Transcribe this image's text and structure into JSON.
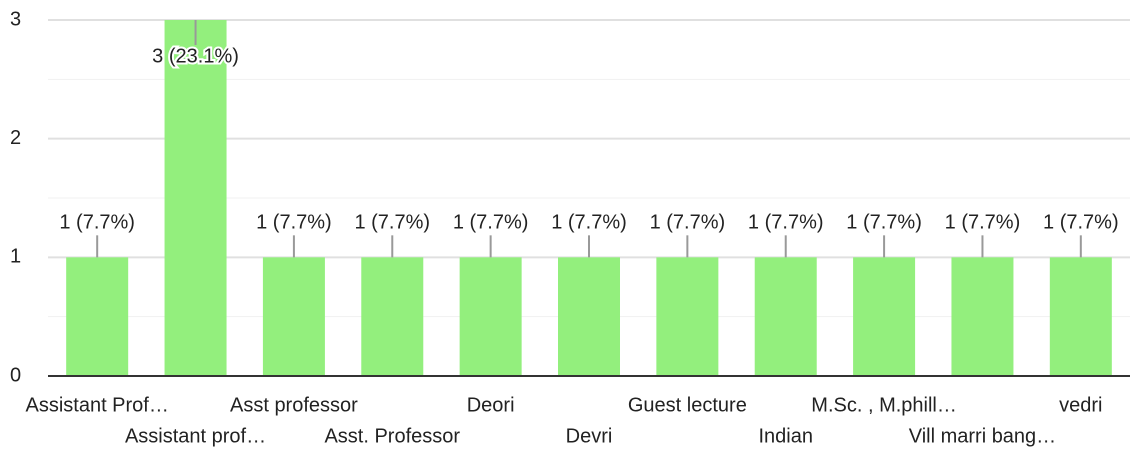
{
  "chart_data": {
    "type": "bar",
    "categories": [
      "Assistant Prof…",
      "Assistant prof…",
      "Asst professor",
      "Asst. Professor",
      "Deori",
      "Devri",
      "Guest lecture",
      "Indian",
      "M.Sc. , M.phill…",
      "Vill marri bang…",
      "vedri"
    ],
    "values": [
      1,
      3,
      1,
      1,
      1,
      1,
      1,
      1,
      1,
      1,
      1
    ],
    "value_labels": [
      "1 (7.7%)",
      "3 (23.1%)",
      "1 (7.7%)",
      "1 (7.7%)",
      "1 (7.7%)",
      "1 (7.7%)",
      "1 (7.7%)",
      "1 (7.7%)",
      "1 (7.7%)",
      "1 (7.7%)",
      "1 (7.7%)"
    ],
    "color": "#93ef7d",
    "ylim": [
      0,
      3
    ],
    "yticks": [
      0,
      1,
      2,
      3
    ],
    "minor_yticks": [
      0.5,
      1.5,
      2.5
    ],
    "grid": true
  }
}
